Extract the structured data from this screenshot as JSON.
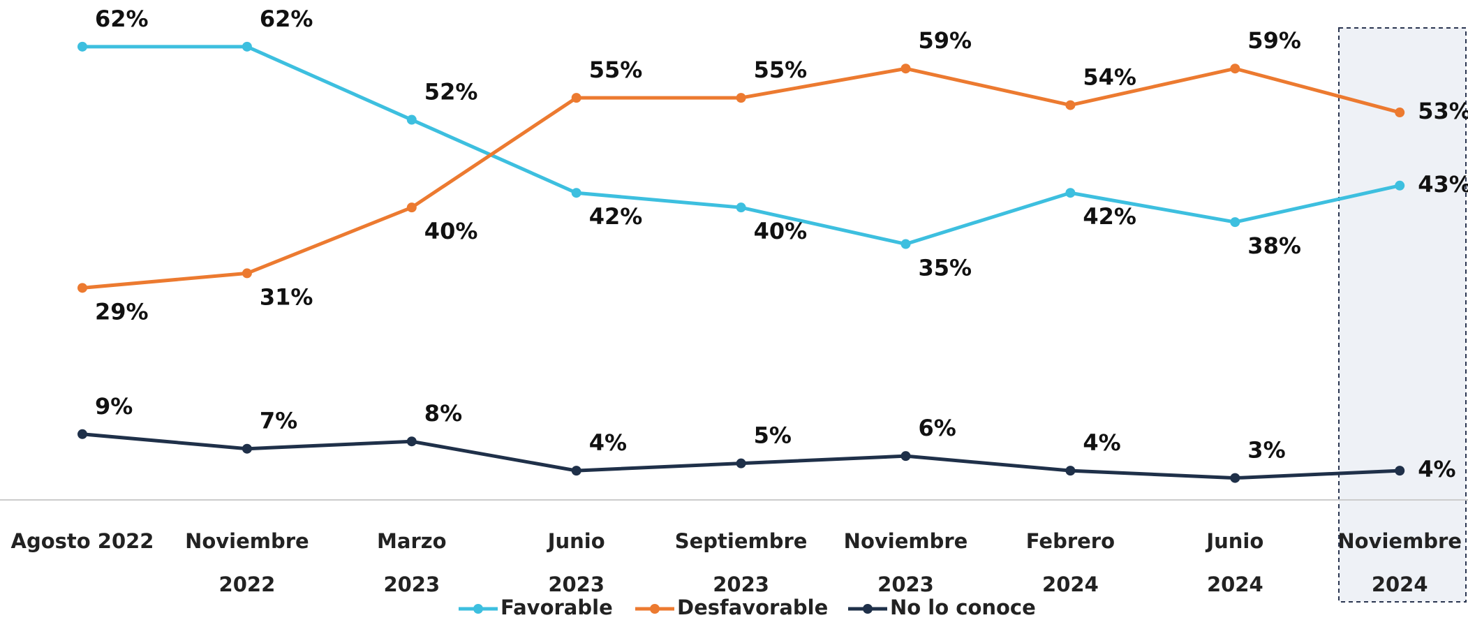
{
  "chart_data": {
    "type": "line",
    "categories": [
      [
        "Agosto 2022"
      ],
      [
        "Noviembre",
        "2022"
      ],
      [
        "Marzo",
        "2023"
      ],
      [
        "Junio",
        "2023"
      ],
      [
        "Septiembre",
        "2023"
      ],
      [
        "Noviembre",
        "2023"
      ],
      [
        "Febrero",
        "2024"
      ],
      [
        "Junio",
        "2024"
      ],
      [
        "Noviembre",
        "2024"
      ]
    ],
    "series": [
      {
        "name": "Favorable",
        "color": "#3dbfdf",
        "values": [
          62,
          62,
          52,
          42,
          40,
          35,
          42,
          38,
          43
        ],
        "value_labels": [
          "62%",
          "62%",
          "52%",
          "42%",
          "40%",
          "35%",
          "42%",
          "38%",
          "43%"
        ]
      },
      {
        "name": "Desfavorable",
        "color": "#ec7a30",
        "values": [
          29,
          31,
          40,
          55,
          55,
          59,
          54,
          59,
          53
        ],
        "value_labels": [
          "29%",
          "31%",
          "40%",
          "55%",
          "55%",
          "59%",
          "54%",
          "59%",
          "53%"
        ]
      },
      {
        "name": "No lo conoce",
        "color": "#1f3049",
        "values": [
          9,
          7,
          8,
          4,
          5,
          6,
          4,
          3,
          4
        ],
        "value_labels": [
          "9%",
          "7%",
          "8%",
          "4%",
          "5%",
          "6%",
          "4%",
          "3%",
          "4%"
        ]
      }
    ],
    "ylim": [
      0,
      68
    ]
  }
}
